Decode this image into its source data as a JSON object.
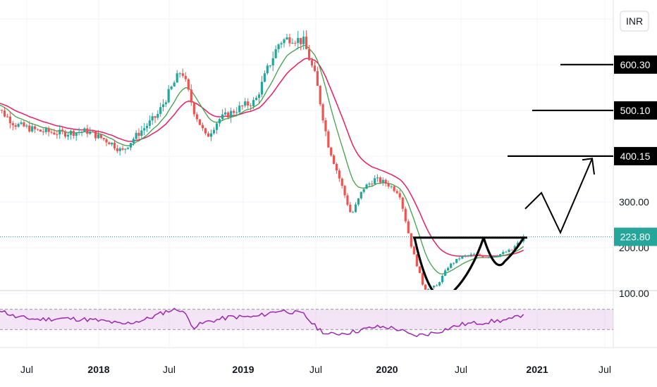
{
  "chart_data": {
    "type": "candlestick",
    "currency_label": "INR",
    "y_scale": "linear",
    "ylim": [
      85,
      740
    ],
    "price_tick_labels": [
      "300.00",
      "200.00",
      "100.00"
    ],
    "price_ticks": [
      300,
      200,
      100
    ],
    "x_tick_labels": [
      {
        "label": "Jul",
        "date": "2017-07",
        "bold": false
      },
      {
        "label": "2018",
        "date": "2018-01",
        "bold": true
      },
      {
        "label": "Jul",
        "date": "2018-07",
        "bold": false
      },
      {
        "label": "2019",
        "date": "2019-01",
        "bold": true
      },
      {
        "label": "Jul",
        "date": "2019-07",
        "bold": false
      },
      {
        "label": "2020",
        "date": "2020-01",
        "bold": true
      },
      {
        "label": "Jul",
        "date": "2020-07",
        "bold": false
      },
      {
        "label": "2021",
        "date": "2021-01",
        "bold": true
      },
      {
        "label": "Jul",
        "date": "2021-07",
        "bold": false
      }
    ],
    "last_price": 223.8,
    "last_price_label": "223.80",
    "target_levels": [
      {
        "label": "600.30",
        "value": 600.3
      },
      {
        "label": "500.10",
        "value": 500.1
      },
      {
        "label": "400.15",
        "value": 400.15
      }
    ],
    "price_path": [
      {
        "date": "2017-04",
        "price": 520
      },
      {
        "date": "2017-06",
        "price": 470
      },
      {
        "date": "2017-08",
        "price": 455
      },
      {
        "date": "2017-10",
        "price": 450
      },
      {
        "date": "2017-12",
        "price": 455
      },
      {
        "date": "2018-02",
        "price": 430
      },
      {
        "date": "2018-03",
        "price": 410
      },
      {
        "date": "2018-04",
        "price": 440
      },
      {
        "date": "2018-06",
        "price": 490
      },
      {
        "date": "2018-07",
        "price": 540
      },
      {
        "date": "2018-08",
        "price": 590
      },
      {
        "date": "2018-09",
        "price": 500
      },
      {
        "date": "2018-10",
        "price": 440
      },
      {
        "date": "2018-11",
        "price": 480
      },
      {
        "date": "2019-01",
        "price": 510
      },
      {
        "date": "2019-02",
        "price": 520
      },
      {
        "date": "2019-03",
        "price": 590
      },
      {
        "date": "2019-04",
        "price": 650
      },
      {
        "date": "2019-05",
        "price": 660
      },
      {
        "date": "2019-06",
        "price": 650
      },
      {
        "date": "2019-07",
        "price": 570
      },
      {
        "date": "2019-08",
        "price": 430
      },
      {
        "date": "2019-09",
        "price": 350
      },
      {
        "date": "2019-10",
        "price": 270
      },
      {
        "date": "2019-11",
        "price": 330
      },
      {
        "date": "2019-12",
        "price": 350
      },
      {
        "date": "2020-01",
        "price": 340
      },
      {
        "date": "2020-02",
        "price": 320
      },
      {
        "date": "2020-03",
        "price": 200
      },
      {
        "date": "2020-04",
        "price": 110
      },
      {
        "date": "2020-05",
        "price": 115
      },
      {
        "date": "2020-06",
        "price": 160
      },
      {
        "date": "2020-07",
        "price": 180
      },
      {
        "date": "2020-08",
        "price": 185
      },
      {
        "date": "2020-09",
        "price": 180
      },
      {
        "date": "2020-10",
        "price": 185
      },
      {
        "date": "2020-11",
        "price": 195
      },
      {
        "date": "2020-12",
        "price": 224
      }
    ],
    "rsi": {
      "ylim": [
        0,
        100
      ],
      "band": [
        30,
        70
      ],
      "path": [
        {
          "date": "2017-04",
          "value": 78
        },
        {
          "date": "2017-06",
          "value": 55
        },
        {
          "date": "2017-08",
          "value": 50
        },
        {
          "date": "2017-10",
          "value": 52
        },
        {
          "date": "2017-12",
          "value": 50
        },
        {
          "date": "2018-02",
          "value": 45
        },
        {
          "date": "2018-03",
          "value": 40
        },
        {
          "date": "2018-05",
          "value": 50
        },
        {
          "date": "2018-07",
          "value": 68
        },
        {
          "date": "2018-08",
          "value": 70
        },
        {
          "date": "2018-09",
          "value": 35
        },
        {
          "date": "2018-10",
          "value": 45
        },
        {
          "date": "2018-12",
          "value": 55
        },
        {
          "date": "2019-02",
          "value": 55
        },
        {
          "date": "2019-04",
          "value": 68
        },
        {
          "date": "2019-05",
          "value": 65
        },
        {
          "date": "2019-06",
          "value": 60
        },
        {
          "date": "2019-07",
          "value": 35
        },
        {
          "date": "2019-08",
          "value": 20
        },
        {
          "date": "2019-10",
          "value": 25
        },
        {
          "date": "2019-12",
          "value": 35
        },
        {
          "date": "2020-01",
          "value": 35
        },
        {
          "date": "2020-02",
          "value": 30
        },
        {
          "date": "2020-03",
          "value": 18
        },
        {
          "date": "2020-04",
          "value": 20
        },
        {
          "date": "2020-05",
          "value": 25
        },
        {
          "date": "2020-07",
          "value": 40
        },
        {
          "date": "2020-09",
          "value": 45
        },
        {
          "date": "2020-11",
          "value": 50
        },
        {
          "date": "2020-12",
          "value": 62
        }
      ]
    }
  }
}
